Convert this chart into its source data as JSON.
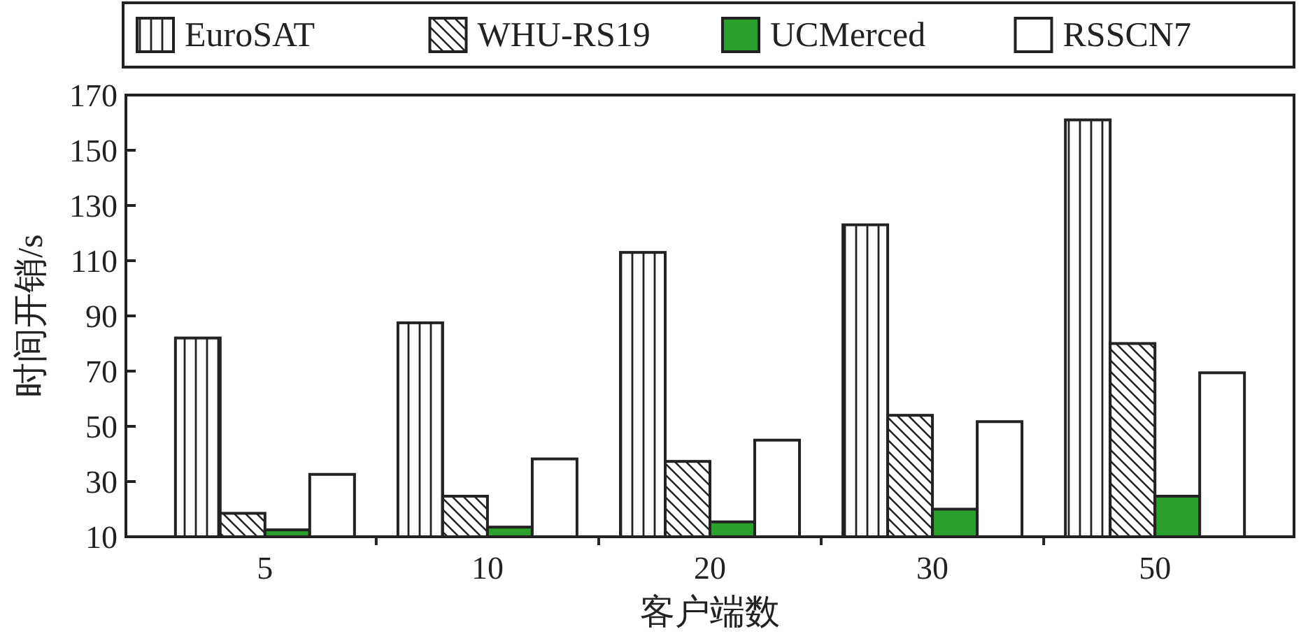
{
  "chart_data": {
    "type": "bar",
    "xlabel": "客户端数",
    "ylabel": "时间开销/s",
    "categories": [
      "5",
      "10",
      "20",
      "30",
      "50"
    ],
    "series": [
      {
        "name": "EuroSAT",
        "color": "#222222",
        "values": [
          82,
          87.5,
          113,
          123,
          161
        ]
      },
      {
        "name": "WHU-RS19",
        "color": "#222222",
        "values": [
          18.5,
          24.7,
          37.3,
          54,
          80
        ]
      },
      {
        "name": "UCMerced",
        "color": "#2ca02c",
        "values": [
          12.5,
          13.5,
          15.4,
          20,
          24.7
        ]
      },
      {
        "name": "RSSCN7",
        "color": "#ffffff",
        "values": [
          32.6,
          38.2,
          45,
          51.7,
          69.4
        ]
      }
    ],
    "ylim": [
      10,
      170
    ],
    "yticks": [
      10,
      30,
      50,
      70,
      90,
      110,
      130,
      150,
      170
    ],
    "grid": false,
    "legend": "top"
  }
}
